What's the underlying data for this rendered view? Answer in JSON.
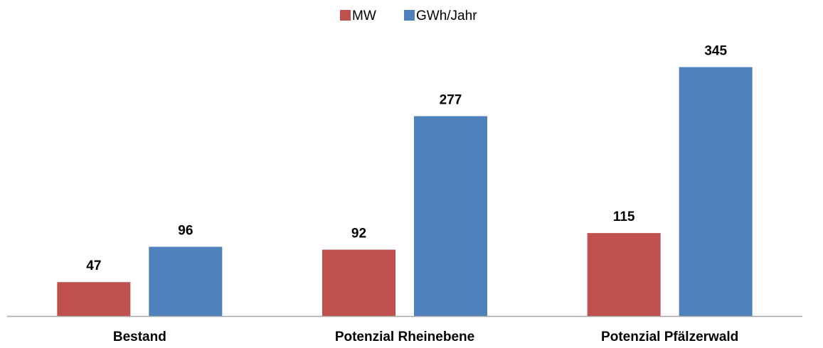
{
  "chart_data": {
    "type": "bar",
    "title": "",
    "xlabel": "",
    "ylabel": "",
    "categories": [
      "Bestand",
      "Potenzial Rheinebene",
      "Potenzial Pfälzerwald"
    ],
    "series": [
      {
        "name": "MW",
        "color": "#C0504D",
        "values": [
          47,
          92,
          115
        ]
      },
      {
        "name": "GWh/Jahr",
        "color": "#4F81BD",
        "values": [
          96,
          277,
          345
        ]
      }
    ],
    "ylim": [
      0,
      400
    ],
    "grid": false,
    "legend_position": "top-center",
    "axis_color": "#A6A6A6",
    "data_labels": true
  }
}
